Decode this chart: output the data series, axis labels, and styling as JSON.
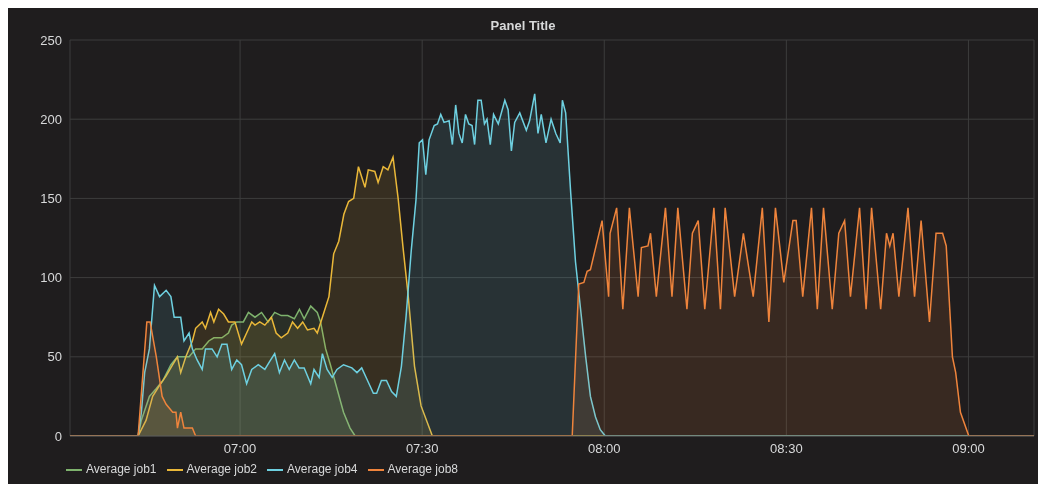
{
  "chart_data": {
    "type": "area",
    "title": "Panel Title",
    "xlim": [
      6.533,
      9.18
    ],
    "xticks": [
      {
        "value": 7,
        "label": "07:00"
      },
      {
        "value": 7.5,
        "label": "07:30"
      },
      {
        "value": 8,
        "label": "08:00"
      },
      {
        "value": 8.5,
        "label": "08:30"
      },
      {
        "value": 9,
        "label": "09:00"
      }
    ],
    "ylim": [
      0,
      250
    ],
    "yticks": [
      0,
      50,
      100,
      150,
      200,
      250
    ],
    "grid": true,
    "legend": "bottom left",
    "marker": "none",
    "line_style": "solid",
    "series": [
      {
        "name": "Average job1",
        "color": "#7eb26d",
        "x": [
          6.533,
          6.72,
          6.729,
          6.751,
          6.77,
          6.788,
          6.81,
          6.828,
          6.846,
          6.86,
          6.878,
          6.896,
          6.914,
          6.928,
          6.95,
          6.968,
          6.977,
          6.991,
          7.009,
          7.023,
          7.041,
          7.059,
          7.077,
          7.095,
          7.113,
          7.131,
          7.149,
          7.163,
          7.176,
          7.194,
          7.212,
          7.221,
          7.235,
          7.248,
          7.266,
          7.284,
          7.302,
          7.316,
          9.18
        ],
        "values": [
          0,
          0,
          10,
          25,
          30,
          35,
          45,
          50,
          50,
          50,
          55,
          55,
          60,
          62,
          62,
          65,
          70,
          72,
          72,
          78,
          75,
          78,
          72,
          78,
          76,
          76,
          74,
          80,
          74,
          82,
          78,
          72,
          55,
          45,
          30,
          15,
          5,
          0,
          0
        ]
      },
      {
        "name": "Average job2",
        "color": "#eab839",
        "x": [
          6.533,
          6.72,
          6.742,
          6.76,
          6.779,
          6.797,
          6.815,
          6.828,
          6.837,
          6.851,
          6.869,
          6.878,
          6.896,
          6.905,
          6.919,
          6.928,
          6.941,
          6.955,
          6.968,
          6.986,
          7.004,
          7.018,
          7.032,
          7.041,
          7.054,
          7.068,
          7.086,
          7.099,
          7.113,
          7.131,
          7.144,
          7.158,
          7.172,
          7.185,
          7.203,
          7.212,
          7.226,
          7.244,
          7.257,
          7.271,
          7.285,
          7.298,
          7.312,
          7.325,
          7.343,
          7.352,
          7.37,
          7.379,
          7.393,
          7.406,
          7.42,
          7.434,
          7.447,
          7.461,
          7.479,
          7.497,
          7.528,
          9.18
        ],
        "values": [
          0,
          0,
          10,
          25,
          32,
          38,
          45,
          50,
          40,
          50,
          60,
          68,
          72,
          68,
          78,
          72,
          80,
          77,
          72,
          72,
          58,
          65,
          72,
          70,
          72,
          70,
          75,
          65,
          62,
          65,
          72,
          68,
          72,
          67,
          68,
          65,
          75,
          88,
          115,
          123,
          140,
          148,
          150,
          170,
          157,
          168,
          167,
          160,
          170,
          168,
          176,
          150,
          120,
          90,
          44,
          19,
          0,
          0
        ]
      },
      {
        "name": "Average job4",
        "color": "#6ed0e0",
        "x": [
          6.533,
          6.72,
          6.729,
          6.738,
          6.751,
          6.765,
          6.779,
          6.797,
          6.81,
          6.819,
          6.837,
          6.846,
          6.86,
          6.869,
          6.882,
          6.896,
          6.905,
          6.923,
          6.937,
          6.95,
          6.964,
          6.977,
          6.991,
          7.004,
          7.018,
          7.032,
          7.05,
          7.068,
          7.081,
          7.095,
          7.108,
          7.122,
          7.135,
          7.149,
          7.162,
          7.176,
          7.194,
          7.203,
          7.217,
          7.226,
          7.239,
          7.253,
          7.266,
          7.284,
          7.307,
          7.321,
          7.334,
          7.348,
          7.366,
          7.375,
          7.388,
          7.402,
          7.416,
          7.429,
          7.443,
          7.456,
          7.47,
          7.483,
          7.492,
          7.501,
          7.51,
          7.519,
          7.533,
          7.542,
          7.551,
          7.56,
          7.574,
          7.583,
          7.592,
          7.601,
          7.61,
          7.619,
          7.628,
          7.637,
          7.644,
          7.653,
          7.662,
          7.671,
          7.678,
          7.687,
          7.696,
          7.709,
          7.727,
          7.736,
          7.745,
          7.754,
          7.768,
          7.786,
          7.795,
          7.809,
          7.818,
          7.827,
          7.84,
          7.854,
          7.867,
          7.879,
          7.885,
          7.894,
          7.908,
          7.921,
          7.935,
          7.949,
          7.962,
          7.976,
          7.989,
          8.003,
          9.18
        ],
        "values": [
          0,
          0,
          15,
          40,
          55,
          95,
          88,
          92,
          88,
          75,
          75,
          60,
          65,
          55,
          48,
          42,
          55,
          55,
          50,
          58,
          58,
          42,
          48,
          45,
          33,
          42,
          45,
          42,
          47,
          52,
          40,
          48,
          42,
          48,
          43,
          43,
          33,
          42,
          37,
          52,
          42,
          37,
          42,
          45,
          43,
          40,
          43,
          36,
          27,
          27,
          35,
          35,
          28,
          25,
          44,
          76,
          117,
          149,
          185,
          187,
          165,
          187,
          196,
          197,
          203,
          198,
          199,
          184,
          209,
          191,
          185,
          203,
          197,
          196,
          184,
          212,
          212,
          197,
          200,
          184,
          203,
          197,
          212,
          206,
          180,
          198,
          204,
          193,
          199,
          216,
          191,
          203,
          185,
          200,
          191,
          185,
          212,
          204,
          153,
          110,
          80,
          50,
          25,
          12,
          4,
          0,
          0
        ]
      },
      {
        "name": "Average job8",
        "color": "#ef843c",
        "x": [
          6.533,
          6.72,
          6.744,
          6.753,
          6.77,
          6.786,
          6.797,
          6.815,
          6.824,
          6.828,
          6.837,
          6.846,
          6.869,
          6.878,
          7.912,
          7.93,
          7.944,
          7.953,
          7.962,
          7.994,
          8.012,
          8.016,
          8.034,
          8.051,
          8.069,
          8.093,
          8.102,
          8.12,
          8.127,
          8.143,
          8.168,
          8.186,
          8.202,
          8.227,
          8.242,
          8.258,
          8.276,
          8.301,
          8.319,
          8.332,
          8.358,
          8.382,
          8.409,
          8.434,
          8.452,
          8.47,
          8.493,
          8.518,
          8.527,
          8.545,
          8.569,
          8.585,
          8.602,
          8.626,
          8.644,
          8.66,
          8.676,
          8.701,
          8.719,
          8.734,
          8.759,
          8.775,
          8.784,
          8.793,
          8.809,
          8.834,
          8.852,
          8.87,
          8.893,
          8.911,
          8.929,
          8.939,
          8.956,
          8.965,
          8.978,
          9.001,
          9.18
        ],
        "values": [
          0,
          0,
          72,
          72,
          50,
          25,
          20,
          15,
          15,
          5,
          15,
          5,
          5,
          0,
          0,
          96,
          97,
          104,
          105,
          136,
          88,
          128,
          144,
          80,
          144,
          88,
          119,
          120,
          128,
          88,
          144,
          88,
          144,
          80,
          128,
          136,
          80,
          144,
          80,
          144,
          88,
          128,
          88,
          144,
          72,
          144,
          97,
          136,
          136,
          88,
          144,
          80,
          144,
          80,
          128,
          136,
          88,
          144,
          80,
          144,
          80,
          128,
          120,
          128,
          88,
          144,
          88,
          136,
          72,
          128,
          128,
          120,
          50,
          40,
          15,
          0,
          0
        ]
      }
    ]
  }
}
